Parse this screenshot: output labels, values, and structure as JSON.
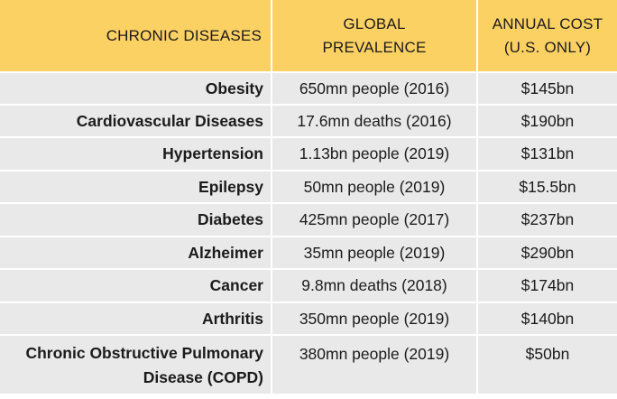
{
  "table": {
    "headers": {
      "disease": "CHRONIC DISEASES",
      "prevalence_line1": "GLOBAL",
      "prevalence_line2": "PREVALENCE",
      "cost_line1": "ANNUAL COST",
      "cost_line2": "(U.S. ONLY)"
    },
    "rows": [
      {
        "disease": "Obesity",
        "prevalence": "650mn people (2016)",
        "cost": "$145bn"
      },
      {
        "disease": "Cardiovascular Diseases",
        "prevalence": "17.6mn deaths (2016)",
        "cost": "$190bn"
      },
      {
        "disease": "Hypertension",
        "prevalence": "1.13bn people (2019)",
        "cost": "$131bn"
      },
      {
        "disease": "Epilepsy",
        "prevalence": "50mn people (2019)",
        "cost": "$15.5bn"
      },
      {
        "disease": "Diabetes",
        "prevalence": "425mn people (2017)",
        "cost": "$237bn"
      },
      {
        "disease": "Alzheimer",
        "prevalence": "35mn people (2019)",
        "cost": "$290bn"
      },
      {
        "disease": "Cancer",
        "prevalence": "9.8mn deaths (2018)",
        "cost": "$174bn"
      },
      {
        "disease": "Arthritis",
        "prevalence": "350mn people (2019)",
        "cost": "$140bn"
      },
      {
        "disease_line1": "Chronic Obstructive Pulmonary",
        "disease_line2": "Disease (COPD)",
        "prevalence": "380mn people (2019)",
        "cost": "$50bn"
      }
    ]
  },
  "colors": {
    "header_bg": "#fcd163",
    "row_bg": "#e9e9e9",
    "text": "#1b1b1b"
  }
}
